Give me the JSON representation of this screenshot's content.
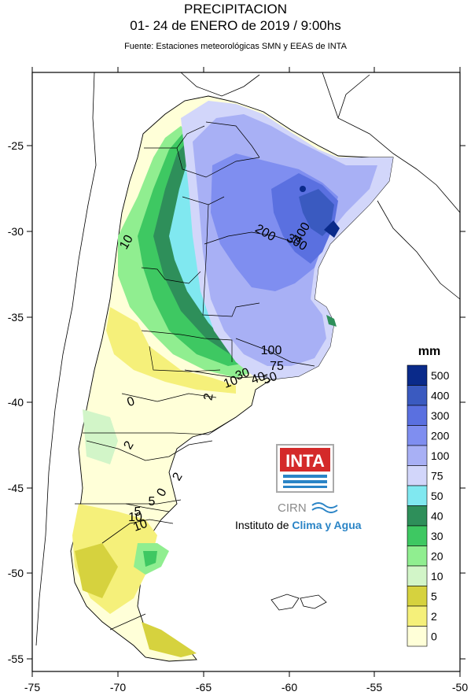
{
  "title": {
    "line1": "PRECIPITACION",
    "line2": "01- 24 de ENERO de 2019 / 9:00hs",
    "source": "Fuente: Estaciones meteorológicas SMN y EEAS de INTA"
  },
  "axes": {
    "x_ticks": [
      "-75",
      "-70",
      "-65",
      "-60",
      "-55",
      "-50"
    ],
    "y_ticks": [
      "-25",
      "-30",
      "-35",
      "-40",
      "-45",
      "-50",
      "-55"
    ]
  },
  "legend": {
    "title": "mm",
    "levels": [
      {
        "label": "500",
        "color": "#0a2a8a"
      },
      {
        "label": "400",
        "color": "#3a5ac0"
      },
      {
        "label": "300",
        "color": "#5a70e0"
      },
      {
        "label": "200",
        "color": "#7f8ef0"
      },
      {
        "label": "100",
        "color": "#a8b0f5"
      },
      {
        "label": "75",
        "color": "#d2d6fa"
      },
      {
        "label": "50",
        "color": "#80e8f0"
      },
      {
        "label": "40",
        "color": "#2e8f5a"
      },
      {
        "label": "30",
        "color": "#3ec862"
      },
      {
        "label": "20",
        "color": "#90ee90"
      },
      {
        "label": "10",
        "color": "#d2f5c8"
      },
      {
        "label": "5",
        "color": "#d6d23e"
      },
      {
        "label": "2",
        "color": "#f5f07a"
      },
      {
        "label": "0",
        "color": "#ffffd8"
      }
    ]
  },
  "contour_labels": [
    "400",
    "200",
    "300",
    "100",
    "75",
    "30",
    "40",
    "50",
    "10",
    "0",
    "2",
    "5",
    "10",
    "5",
    "10",
    "2",
    "0",
    "10",
    "2"
  ],
  "logo": {
    "inta": "INTA",
    "cirn": "CIRN",
    "institute_prefix": "Instituto de ",
    "institute_highlight": "Clima y Agua"
  },
  "colors": {
    "border": "#000000",
    "inta_red": "#d42a2a",
    "inta_blue": "#2a84c6"
  }
}
